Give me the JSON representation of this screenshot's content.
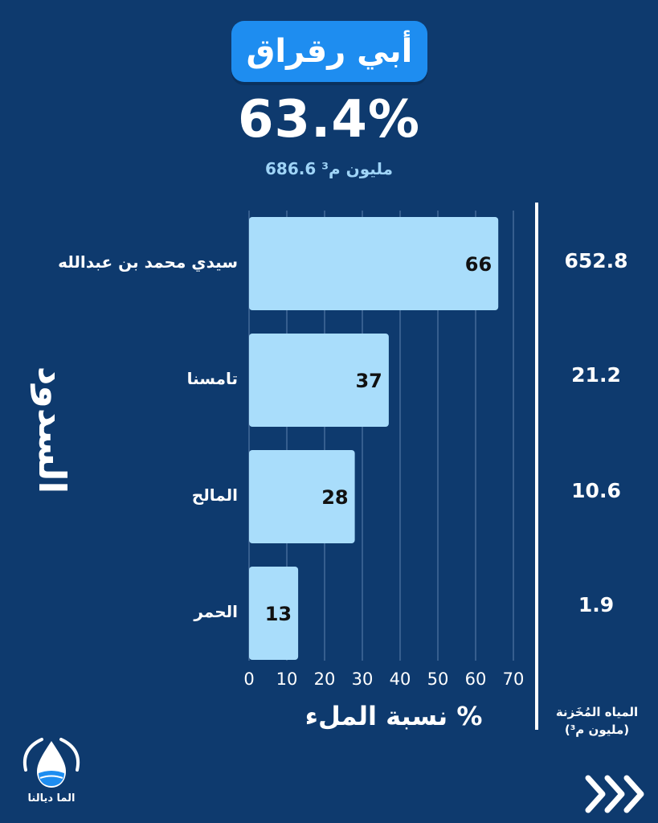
{
  "header": {
    "title": "أبي رقراق",
    "fill_percent": "63.4%",
    "volume_text": "686.6 مليون م³"
  },
  "labels": {
    "y_axis_title": "السدود",
    "x_axis_title": "نسبة الملء %",
    "stored_title_line1": "المياه المُخَزنة",
    "stored_title_line2": "(مليون م³)"
  },
  "dams": [
    {
      "name": "سيدي محمد بن عبدالله",
      "stored": "652.8"
    },
    {
      "name": "تامسنا",
      "stored": "21.2"
    },
    {
      "name": "المالح",
      "stored": "10.6"
    },
    {
      "name": "الحمر",
      "stored": "1.9"
    }
  ],
  "brand": {
    "logo_text": "الما ديالنا"
  },
  "nav": {
    "next_icon": "triple-chevron-right-icon"
  },
  "colors": {
    "background": "#0e3a6e",
    "bar": "#a9ddfb",
    "title_pill": "#1e8df0",
    "volume_text": "#9fd4f7"
  },
  "chart_data": {
    "type": "bar",
    "orientation": "horizontal",
    "categories": [
      "سيدي محمد بن عبدالله",
      "تامسنا",
      "المالح",
      "الحمر"
    ],
    "values": [
      66,
      37,
      28,
      13
    ],
    "xlabel": "نسبة الملء %",
    "ylabel": "السدود",
    "xlim": [
      0,
      70
    ],
    "xticks": [
      0,
      10,
      20,
      30,
      40,
      50,
      60,
      70
    ],
    "grid": true
  }
}
